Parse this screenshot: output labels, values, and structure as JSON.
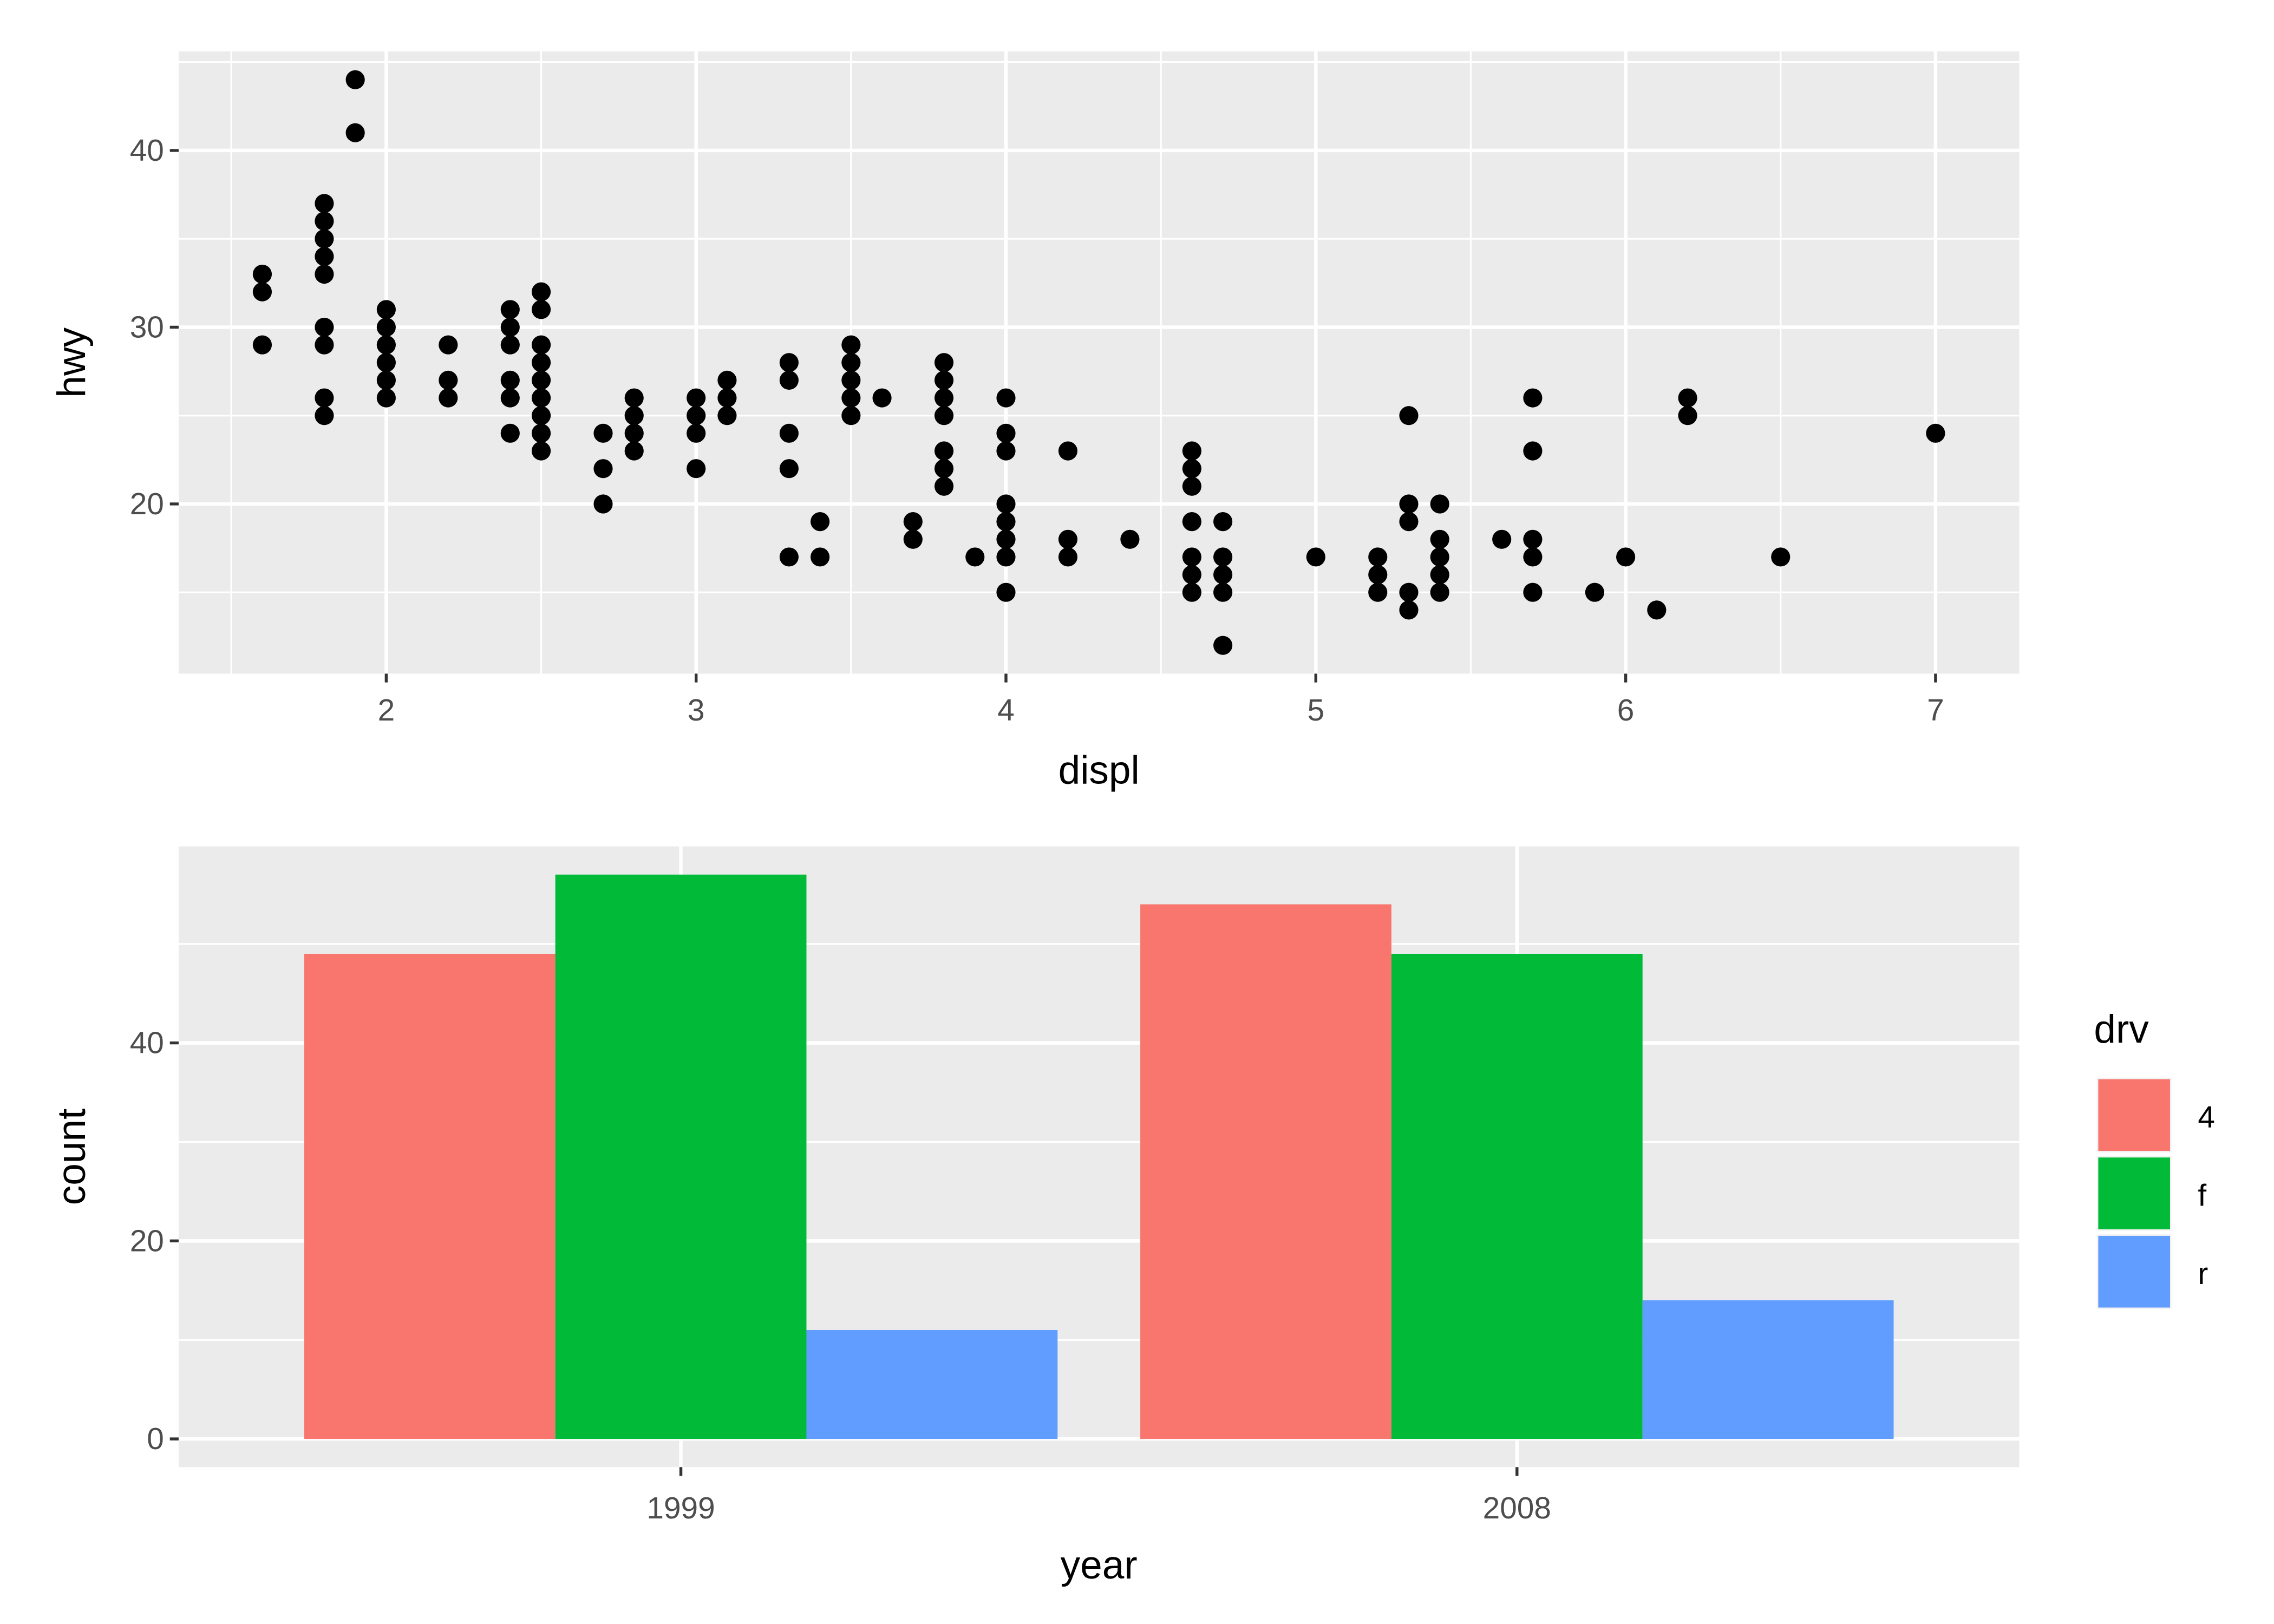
{
  "chart_data": [
    {
      "type": "scatter",
      "xlabel": "displ",
      "ylabel": "hwy",
      "xlim": [
        1.33,
        7.27
      ],
      "ylim": [
        10.4,
        45.6
      ],
      "xticks": [
        2,
        3,
        4,
        5,
        6,
        7
      ],
      "yticks": [
        20,
        30,
        40
      ],
      "grid": true,
      "points": [
        [
          1.6,
          33
        ],
        [
          1.6,
          32
        ],
        [
          1.6,
          29
        ],
        [
          1.8,
          37
        ],
        [
          1.8,
          36
        ],
        [
          1.8,
          35
        ],
        [
          1.8,
          34
        ],
        [
          1.8,
          33
        ],
        [
          1.8,
          30
        ],
        [
          1.8,
          29
        ],
        [
          1.8,
          26
        ],
        [
          1.8,
          25
        ],
        [
          1.9,
          44
        ],
        [
          1.9,
          41
        ],
        [
          2.0,
          31
        ],
        [
          2.0,
          30
        ],
        [
          2.0,
          29
        ],
        [
          2.0,
          28
        ],
        [
          2.0,
          27
        ],
        [
          2.0,
          26
        ],
        [
          2.2,
          29
        ],
        [
          2.2,
          27
        ],
        [
          2.2,
          26
        ],
        [
          2.4,
          31
        ],
        [
          2.4,
          30
        ],
        [
          2.4,
          29
        ],
        [
          2.4,
          27
        ],
        [
          2.4,
          26
        ],
        [
          2.4,
          24
        ],
        [
          2.5,
          32
        ],
        [
          2.5,
          31
        ],
        [
          2.5,
          29
        ],
        [
          2.5,
          28
        ],
        [
          2.5,
          27
        ],
        [
          2.5,
          26
        ],
        [
          2.5,
          25
        ],
        [
          2.5,
          24
        ],
        [
          2.5,
          23
        ],
        [
          2.7,
          24
        ],
        [
          2.7,
          22
        ],
        [
          2.7,
          20
        ],
        [
          2.8,
          26
        ],
        [
          2.8,
          25
        ],
        [
          2.8,
          24
        ],
        [
          2.8,
          23
        ],
        [
          3.0,
          26
        ],
        [
          3.0,
          25
        ],
        [
          3.0,
          24
        ],
        [
          3.0,
          22
        ],
        [
          3.1,
          27
        ],
        [
          3.1,
          26
        ],
        [
          3.1,
          25
        ],
        [
          3.3,
          28
        ],
        [
          3.3,
          27
        ],
        [
          3.3,
          24
        ],
        [
          3.3,
          22
        ],
        [
          3.3,
          17
        ],
        [
          3.4,
          19
        ],
        [
          3.4,
          17
        ],
        [
          3.5,
          29
        ],
        [
          3.5,
          28
        ],
        [
          3.5,
          27
        ],
        [
          3.5,
          26
        ],
        [
          3.5,
          25
        ],
        [
          3.6,
          26
        ],
        [
          3.7,
          19
        ],
        [
          3.7,
          18
        ],
        [
          3.8,
          28
        ],
        [
          3.8,
          27
        ],
        [
          3.8,
          26
        ],
        [
          3.8,
          25
        ],
        [
          3.8,
          23
        ],
        [
          3.8,
          22
        ],
        [
          3.8,
          21
        ],
        [
          3.9,
          17
        ],
        [
          4.0,
          26
        ],
        [
          4.0,
          24
        ],
        [
          4.0,
          23
        ],
        [
          4.0,
          20
        ],
        [
          4.0,
          19
        ],
        [
          4.0,
          18
        ],
        [
          4.0,
          17
        ],
        [
          4.0,
          15
        ],
        [
          4.2,
          23
        ],
        [
          4.2,
          18
        ],
        [
          4.2,
          17
        ],
        [
          4.4,
          18
        ],
        [
          4.6,
          23
        ],
        [
          4.6,
          22
        ],
        [
          4.6,
          21
        ],
        [
          4.6,
          19
        ],
        [
          4.6,
          17
        ],
        [
          4.6,
          16
        ],
        [
          4.6,
          15
        ],
        [
          4.7,
          19
        ],
        [
          4.7,
          17
        ],
        [
          4.7,
          16
        ],
        [
          4.7,
          15
        ],
        [
          4.7,
          12
        ],
        [
          5.0,
          17
        ],
        [
          5.2,
          17
        ],
        [
          5.2,
          16
        ],
        [
          5.2,
          15
        ],
        [
          5.3,
          25
        ],
        [
          5.3,
          20
        ],
        [
          5.3,
          19
        ],
        [
          5.3,
          15
        ],
        [
          5.3,
          14
        ],
        [
          5.4,
          20
        ],
        [
          5.4,
          18
        ],
        [
          5.4,
          17
        ],
        [
          5.4,
          16
        ],
        [
          5.4,
          15
        ],
        [
          5.6,
          18
        ],
        [
          5.7,
          26
        ],
        [
          5.7,
          23
        ],
        [
          5.7,
          18
        ],
        [
          5.7,
          17
        ],
        [
          5.7,
          15
        ],
        [
          5.9,
          15
        ],
        [
          6.0,
          17
        ],
        [
          6.1,
          14
        ],
        [
          6.2,
          26
        ],
        [
          6.2,
          25
        ],
        [
          6.5,
          17
        ],
        [
          7.0,
          24
        ]
      ]
    },
    {
      "type": "bar",
      "xlabel": "year",
      "ylabel": "count",
      "categories": [
        "1999",
        "2008"
      ],
      "yticks": [
        0,
        20,
        40
      ],
      "ylim": [
        -2.85,
        59.85
      ],
      "grid": true,
      "legend": {
        "title": "drv",
        "placement": "right"
      },
      "series": [
        {
          "name": "4",
          "color": "#F8766D",
          "values": [
            49,
            54
          ]
        },
        {
          "name": "f",
          "color": "#00BA38",
          "values": [
            57,
            49
          ]
        },
        {
          "name": "r",
          "color": "#619CFF",
          "values": [
            11,
            14
          ]
        }
      ]
    }
  ]
}
